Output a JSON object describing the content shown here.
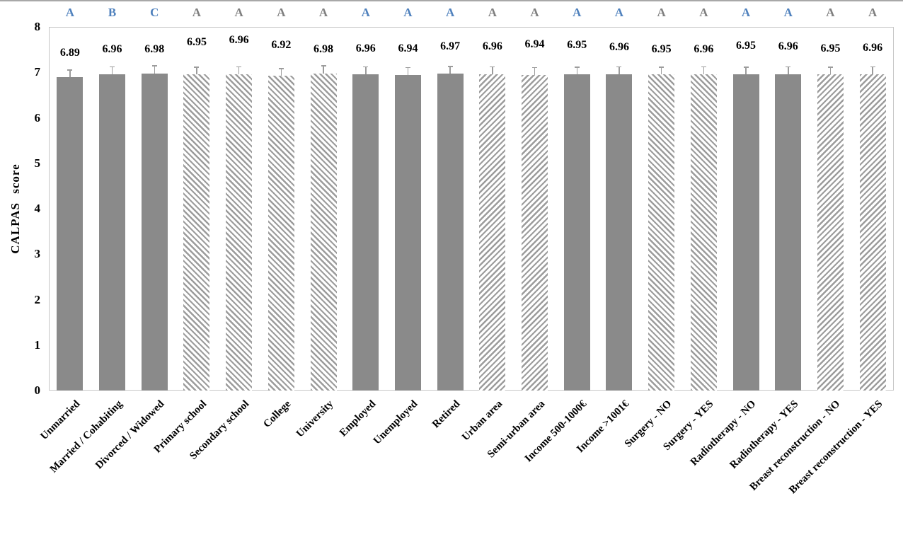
{
  "colors": {
    "bar_fill": "#8a8a8a",
    "hatch_stripe": "#9c9c9c",
    "error_bar": "#9c9c9c",
    "plot_border": "#c6c6c6",
    "letter_blue": "#4f81bd",
    "letter_gray": "#7f7f7f",
    "label_text": "#000000",
    "top_rule": "#a8a8a8"
  },
  "chart_data": {
    "type": "bar",
    "title": "",
    "ylabel": "CALPAS score",
    "xlabel": "",
    "ylim": [
      0,
      8
    ],
    "yticks": [
      0,
      1,
      2,
      3,
      4,
      5,
      6,
      7,
      8
    ],
    "grid": false,
    "legend_position": "none",
    "categories": [
      "Unmarried",
      "Married / Cohabiting",
      "Divorced / Widowed",
      "Primary school",
      "Secondary school",
      "College",
      "University",
      "Employed",
      "Unemployed",
      "Retired",
      "Urban area",
      "Semi-urban area",
      "Income 500-1000€",
      "Income >1001€",
      "Surgery - NO",
      "Surgery - YES",
      "Radiotherapy - NO",
      "Radiotherapy - YES",
      "Breast reconstruction - NO",
      "Breast reconstruction - YES"
    ],
    "values": [
      6.89,
      6.96,
      6.98,
      6.95,
      6.96,
      6.92,
      6.98,
      6.96,
      6.94,
      6.97,
      6.96,
      6.94,
      6.95,
      6.96,
      6.95,
      6.96,
      6.95,
      6.96,
      6.95,
      6.96
    ],
    "value_labels": [
      "6.89",
      "6.96",
      "6.98",
      "6.95",
      "6.96",
      "6.92",
      "6.98",
      "6.96",
      "6.94",
      "6.97",
      "6.96",
      "6.94",
      "6.95",
      "6.96",
      "6.95",
      "6.96",
      "6.95",
      "6.96",
      "6.95",
      "6.96"
    ],
    "sig_letters": [
      "A",
      "B",
      "C",
      "A",
      "A",
      "A",
      "A",
      "A",
      "A",
      "A",
      "A",
      "A",
      "A",
      "A",
      "A",
      "A",
      "A",
      "A",
      "A",
      "A"
    ],
    "sig_letter_colors": [
      "blue",
      "blue",
      "blue",
      "gray",
      "gray",
      "gray",
      "gray",
      "blue",
      "blue",
      "blue",
      "gray",
      "gray",
      "blue",
      "blue",
      "gray",
      "gray",
      "blue",
      "blue",
      "gray",
      "gray"
    ],
    "bar_patterns": [
      "solid",
      "solid",
      "solid",
      "hatch-down",
      "hatch-down",
      "hatch-down",
      "hatch-down",
      "solid",
      "solid",
      "solid",
      "hatch-up",
      "hatch-up",
      "solid",
      "solid",
      "hatch-down",
      "hatch-down",
      "solid",
      "solid",
      "hatch-up",
      "hatch-up"
    ],
    "error_bar_size": 0.15
  }
}
